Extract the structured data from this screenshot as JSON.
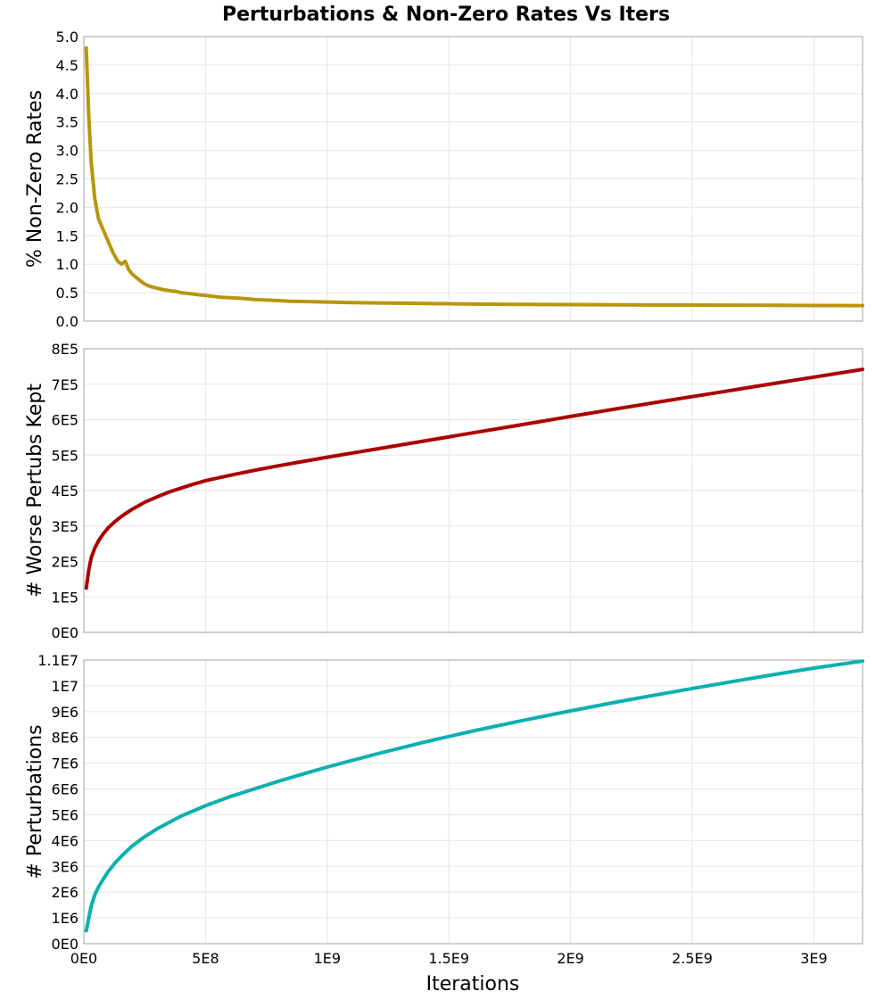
{
  "chart_data": {
    "type": "line",
    "title": "Perturbations & Non-Zero Rates Vs Iters",
    "xlabel": "Iterations",
    "xlim": [
      0,
      3200000000
    ],
    "x_ticks": [
      {
        "v": 0,
        "label": "0E0"
      },
      {
        "v": 500000000,
        "label": "5E8"
      },
      {
        "v": 1000000000,
        "label": "1E9"
      },
      {
        "v": 1500000000,
        "label": "1.5E9"
      },
      {
        "v": 2000000000,
        "label": "2E9"
      },
      {
        "v": 2500000000,
        "label": "2.5E9"
      },
      {
        "v": 3000000000,
        "label": "3E9"
      }
    ],
    "grid": true,
    "panels": [
      {
        "ylabel": "% Non-Zero Rates",
        "ylim": [
          0,
          5.0
        ],
        "color": "#b8960c",
        "y_ticks": [
          {
            "v": 0.0,
            "label": "0.0"
          },
          {
            "v": 0.5,
            "label": "0.5"
          },
          {
            "v": 1.0,
            "label": "1.0"
          },
          {
            "v": 1.5,
            "label": "1.5"
          },
          {
            "v": 2.0,
            "label": "2.0"
          },
          {
            "v": 2.5,
            "label": "2.5"
          },
          {
            "v": 3.0,
            "label": "3.0"
          },
          {
            "v": 3.5,
            "label": "3.5"
          },
          {
            "v": 4.0,
            "label": "4.0"
          },
          {
            "v": 4.5,
            "label": "4.5"
          },
          {
            "v": 5.0,
            "label": "5.0"
          }
        ],
        "x": [
          10000000,
          20000000,
          30000000,
          45000000,
          60000000,
          80000000,
          100000000,
          120000000,
          140000000,
          155000000,
          170000000,
          185000000,
          200000000,
          220000000,
          240000000,
          260000000,
          280000000,
          300000000,
          330000000,
          360000000,
          380000000,
          400000000,
          440000000,
          480000000,
          520000000,
          560000000,
          600000000,
          650000000,
          700000000,
          750000000,
          800000000,
          850000000,
          900000000,
          1000000000,
          1100000000,
          1200000000,
          1300000000,
          1400000000,
          1500000000,
          1600000000,
          1700000000,
          1800000000,
          1900000000,
          2000000000,
          2200000000,
          2400000000,
          2600000000,
          2800000000,
          3000000000,
          3200000000
        ],
        "y": [
          4.8,
          3.6,
          2.8,
          2.15,
          1.8,
          1.6,
          1.4,
          1.2,
          1.05,
          1.0,
          1.05,
          0.9,
          0.82,
          0.75,
          0.68,
          0.63,
          0.6,
          0.58,
          0.55,
          0.53,
          0.52,
          0.5,
          0.48,
          0.46,
          0.44,
          0.42,
          0.41,
          0.4,
          0.38,
          0.37,
          0.36,
          0.35,
          0.345,
          0.335,
          0.325,
          0.32,
          0.315,
          0.31,
          0.305,
          0.3,
          0.297,
          0.295,
          0.292,
          0.29,
          0.285,
          0.282,
          0.28,
          0.278,
          0.275,
          0.272
        ]
      },
      {
        "ylabel": "# Worse Pertubs Kept",
        "ylim": [
          0,
          800000
        ],
        "color": "#aa0000",
        "y_ticks": [
          {
            "v": 0,
            "label": "0E0"
          },
          {
            "v": 100000,
            "label": "1E5"
          },
          {
            "v": 200000,
            "label": "2E5"
          },
          {
            "v": 300000,
            "label": "3E5"
          },
          {
            "v": 400000,
            "label": "4E5"
          },
          {
            "v": 500000,
            "label": "5E5"
          },
          {
            "v": 600000,
            "label": "6E5"
          },
          {
            "v": 700000,
            "label": "7E5"
          },
          {
            "v": 800000,
            "label": "8E5"
          }
        ],
        "x": [
          10000000,
          20000000,
          30000000,
          45000000,
          60000000,
          80000000,
          100000000,
          130000000,
          160000000,
          200000000,
          250000000,
          300000000,
          350000000,
          400000000,
          450000000,
          500000000,
          600000000,
          700000000,
          800000000,
          900000000,
          1000000000,
          1200000000,
          1400000000,
          1600000000,
          1800000000,
          2000000000,
          2200000000,
          2400000000,
          2600000000,
          2800000000,
          3000000000,
          3200000000
        ],
        "y": [
          125000,
          175000,
          210000,
          238000,
          258000,
          278000,
          295000,
          314000,
          330000,
          348000,
          367000,
          382000,
          396000,
          407000,
          418000,
          428000,
          443000,
          457000,
          470000,
          482000,
          494000,
          517000,
          540000,
          563000,
          586000,
          609000,
          632000,
          654000,
          676000,
          698000,
          720000,
          742000
        ]
      },
      {
        "ylabel": "# Perturbations",
        "ylim": [
          0,
          11000000
        ],
        "color": "#0bb0b0",
        "y_ticks": [
          {
            "v": 0,
            "label": "0E0"
          },
          {
            "v": 1000000,
            "label": "1E6"
          },
          {
            "v": 2000000,
            "label": "2E6"
          },
          {
            "v": 3000000,
            "label": "3E6"
          },
          {
            "v": 4000000,
            "label": "4E6"
          },
          {
            "v": 5000000,
            "label": "5E6"
          },
          {
            "v": 6000000,
            "label": "6E6"
          },
          {
            "v": 7000000,
            "label": "7E6"
          },
          {
            "v": 8000000,
            "label": "8E6"
          },
          {
            "v": 9000000,
            "label": "9E6"
          },
          {
            "v": 10000000,
            "label": "1E7"
          },
          {
            "v": 11000000,
            "label": "1.1E7"
          }
        ],
        "x": [
          10000000,
          20000000,
          30000000,
          45000000,
          60000000,
          80000000,
          100000000,
          130000000,
          160000000,
          200000000,
          250000000,
          300000000,
          350000000,
          400000000,
          450000000,
          500000000,
          600000000,
          700000000,
          800000000,
          900000000,
          1000000000,
          1200000000,
          1400000000,
          1600000000,
          1800000000,
          2000000000,
          2200000000,
          2400000000,
          2600000000,
          2800000000,
          3000000000,
          3200000000
        ],
        "y": [
          500000,
          1000000,
          1450000,
          1900000,
          2200000,
          2500000,
          2800000,
          3150000,
          3450000,
          3800000,
          4150000,
          4450000,
          4700000,
          4950000,
          5150000,
          5350000,
          5700000,
          6000000,
          6300000,
          6580000,
          6850000,
          7350000,
          7820000,
          8250000,
          8650000,
          9030000,
          9390000,
          9730000,
          10060000,
          10380000,
          10690000,
          10960000
        ]
      }
    ]
  }
}
